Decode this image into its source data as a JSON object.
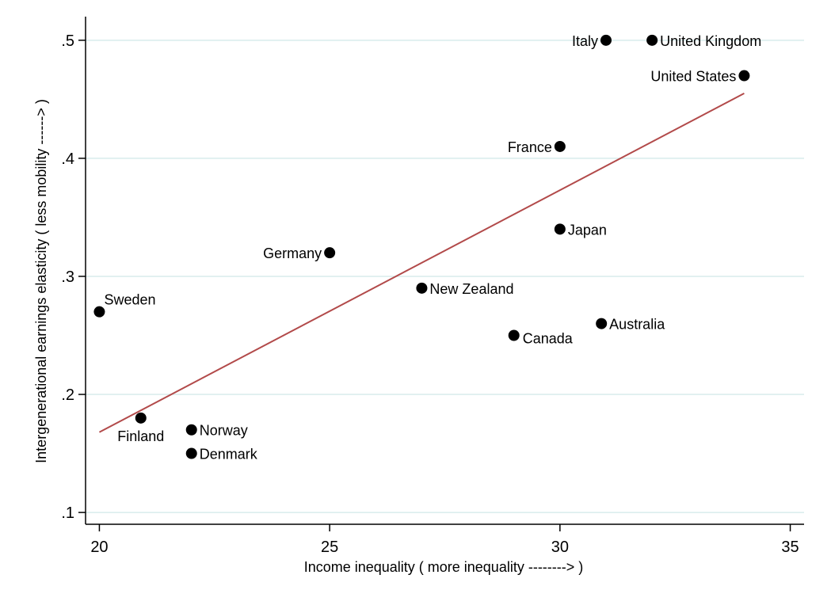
{
  "chart_data": {
    "type": "scatter",
    "title": "",
    "xlabel": "Income inequality ( more inequality --------> )",
    "ylabel": "Intergenerational earnings elasticity ( less mobility ------> )",
    "xlim": [
      19.7,
      35.3
    ],
    "ylim": [
      0.09,
      0.52
    ],
    "xticks": [
      20,
      25,
      30,
      35
    ],
    "xtick_labels": [
      "20",
      "25",
      "30",
      "35"
    ],
    "yticks": [
      0.1,
      0.2,
      0.3,
      0.4,
      0.5
    ],
    "ytick_labels": [
      ".1",
      ".2",
      ".3",
      ".4",
      ".5"
    ],
    "grid": true,
    "colors": {
      "marker": "#000000",
      "fit_line": "#b24a4a",
      "grid": "#d8ecec",
      "axis": "#000000"
    },
    "points": [
      {
        "name": "Italy",
        "x": 31.0,
        "y": 0.5,
        "label_pos": "left"
      },
      {
        "name": "United Kingdom",
        "x": 32.0,
        "y": 0.5,
        "label_pos": "right"
      },
      {
        "name": "United States",
        "x": 34.0,
        "y": 0.47,
        "label_pos": "left"
      },
      {
        "name": "France",
        "x": 30.0,
        "y": 0.41,
        "label_pos": "left"
      },
      {
        "name": "Japan",
        "x": 30.0,
        "y": 0.34,
        "label_pos": "right"
      },
      {
        "name": "Germany",
        "x": 25.0,
        "y": 0.32,
        "label_pos": "left"
      },
      {
        "name": "New Zealand",
        "x": 27.0,
        "y": 0.29,
        "label_pos": "right"
      },
      {
        "name": "Sweden",
        "x": 20.0,
        "y": 0.27,
        "label_pos": "above-right"
      },
      {
        "name": "Australia",
        "x": 30.9,
        "y": 0.26,
        "label_pos": "right"
      },
      {
        "name": "Canada",
        "x": 29.0,
        "y": 0.25,
        "label_pos": "below-right"
      },
      {
        "name": "Finland",
        "x": 20.9,
        "y": 0.18,
        "label_pos": "below"
      },
      {
        "name": "Norway",
        "x": 22.0,
        "y": 0.17,
        "label_pos": "right"
      },
      {
        "name": "Denmark",
        "x": 22.0,
        "y": 0.15,
        "label_pos": "right"
      }
    ],
    "fit_line": {
      "x": [
        20.0,
        34.0
      ],
      "y": [
        0.168,
        0.455
      ]
    }
  }
}
